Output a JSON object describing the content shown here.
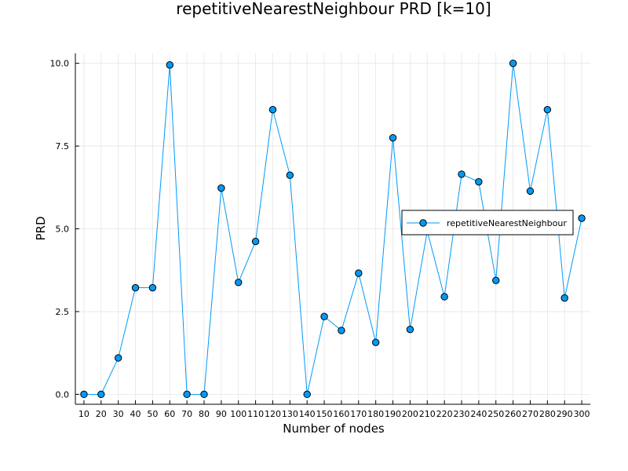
{
  "chart_data": {
    "type": "line",
    "title": "repetitiveNearestNeighbour PRD [k=10]",
    "xlabel": "Number of nodes",
    "ylabel": "PRD",
    "x": [
      10,
      20,
      30,
      40,
      50,
      60,
      70,
      80,
      90,
      100,
      110,
      120,
      130,
      140,
      150,
      160,
      170,
      180,
      190,
      200,
      210,
      220,
      230,
      240,
      250,
      260,
      270,
      280,
      290,
      300
    ],
    "series": [
      {
        "name": "repetitiveNearestNeighbour",
        "values": [
          0.0,
          0.0,
          1.1,
          3.22,
          3.22,
          9.95,
          0.0,
          0.0,
          6.23,
          3.38,
          4.62,
          8.6,
          6.62,
          0.0,
          2.35,
          1.93,
          3.66,
          1.57,
          7.75,
          1.96,
          4.93,
          2.95,
          6.65,
          6.42,
          3.44,
          10.0,
          6.14,
          8.6,
          2.91,
          5.32
        ],
        "color": "#009AF9",
        "marker": "circle"
      }
    ],
    "xticks": [
      "10",
      "20",
      "30",
      "40",
      "50",
      "60",
      "70",
      "80",
      "90",
      "100",
      "110",
      "120",
      "130",
      "140",
      "150",
      "160",
      "170",
      "180",
      "190",
      "200",
      "210",
      "220",
      "230",
      "240",
      "250",
      "260",
      "270",
      "280",
      "290",
      "300"
    ],
    "yticks": [
      "0.0",
      "2.5",
      "5.0",
      "7.5",
      "10.0"
    ],
    "xlim": [
      5,
      305
    ],
    "ylim": [
      -0.3,
      10.3
    ],
    "grid": true,
    "legend_position": "right"
  }
}
